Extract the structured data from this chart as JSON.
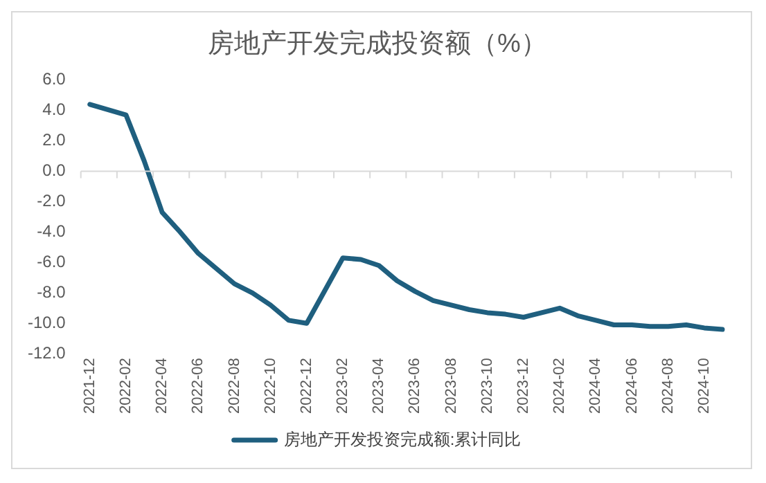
{
  "chart_data": {
    "type": "line",
    "title": "房地产开发完成投资额（%）",
    "categories": [
      "2021-12",
      null,
      "2022-02",
      null,
      "2022-04",
      null,
      "2022-06",
      null,
      "2022-08",
      null,
      "2022-10",
      null,
      "2022-12",
      null,
      "2023-02",
      null,
      "2023-04",
      null,
      "2023-06",
      null,
      "2023-08",
      null,
      "2023-10",
      null,
      "2023-12",
      null,
      "2024-02",
      null,
      "2024-04",
      null,
      "2024-06",
      null,
      "2024-08",
      null,
      "2024-10",
      null
    ],
    "series": [
      {
        "name": "房地产开发投资完成额:累计同比",
        "color": "#1f5f7f",
        "values": [
          4.4,
          null,
          3.7,
          0.7,
          -2.7,
          -4.0,
          -5.4,
          -6.4,
          -7.4,
          -8.0,
          -8.8,
          -9.8,
          -10.0,
          null,
          -5.7,
          -5.8,
          -6.2,
          -7.2,
          -7.9,
          -8.5,
          -8.8,
          -9.1,
          -9.3,
          -9.4,
          -9.6,
          null,
          -9.0,
          -9.5,
          -9.8,
          -10.1,
          -10.1,
          -10.2,
          -10.2,
          -10.1,
          -10.3,
          -10.4
        ]
      }
    ],
    "ylim": [
      -12,
      6
    ],
    "yticks": [
      {
        "value": -12,
        "label": "-12.0"
      },
      {
        "value": -10,
        "label": "-10.0"
      },
      {
        "value": -8,
        "label": "-8.0"
      },
      {
        "value": -6,
        "label": "-6.0"
      },
      {
        "value": -4,
        "label": "-4.0"
      },
      {
        "value": -2,
        "label": "-2.0"
      },
      {
        "value": 0,
        "label": "0.0"
      },
      {
        "value": 2,
        "label": "2.0"
      },
      {
        "value": 4,
        "label": "4.0"
      },
      {
        "value": 6,
        "label": "6.0"
      }
    ],
    "ref_lines": [
      {
        "axis": "y",
        "value": 0,
        "color": "#d9d9d9"
      }
    ],
    "grid": false,
    "legend": "bottom",
    "marker": "none",
    "line_style": "solid"
  }
}
